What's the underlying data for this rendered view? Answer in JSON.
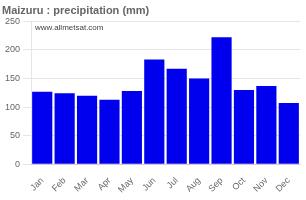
{
  "chart_data": {
    "type": "bar",
    "title": "Maizuru : precipitation (mm)",
    "categories": [
      "Jan",
      "Feb",
      "Mar",
      "Apr",
      "May",
      "Jun",
      "Jul",
      "Aug",
      "Sep",
      "Oct",
      "Nov",
      "Dec"
    ],
    "values": [
      127,
      124,
      120,
      113,
      128,
      183,
      167,
      150,
      222,
      130,
      137,
      107
    ],
    "color": "#0000ee",
    "ylim": [
      0,
      250
    ],
    "yticks": [
      0,
      50,
      100,
      150,
      200,
      250
    ],
    "grid": true,
    "annotations": [
      "www.allmetsat.com"
    ]
  }
}
